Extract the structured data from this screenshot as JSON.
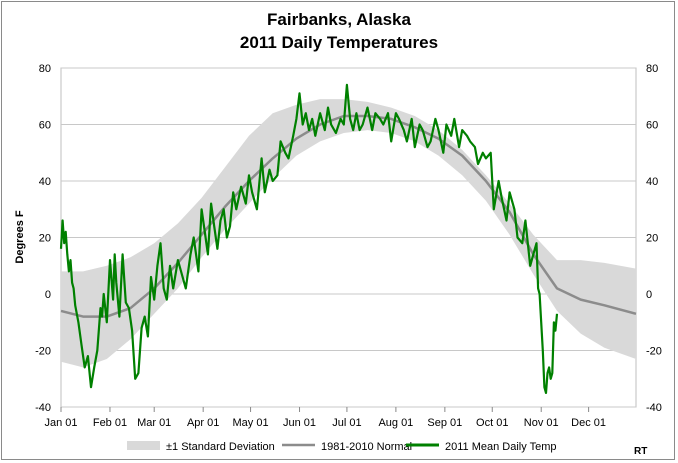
{
  "chart_data": {
    "type": "line",
    "title": "Fairbanks, Alaska",
    "subtitle": "2011 Daily Temperatures",
    "ylabel": "Degrees F",
    "ylim": [
      -40,
      80
    ],
    "yticks": [
      "80",
      "60",
      "40",
      "20",
      "0",
      "-20",
      "-40"
    ],
    "y_tick_values": [
      80,
      60,
      40,
      20,
      0,
      -20,
      -40
    ],
    "x_tick_labels": [
      "Jan 01",
      "Feb 01",
      "Mar 01",
      "Apr 01",
      "May 01",
      "Jun 01",
      "Jul 01",
      "Aug 01",
      "Sep 01",
      "Oct 01",
      "Nov 01",
      "Dec 01"
    ],
    "x_tick_days": [
      1,
      32,
      60,
      91,
      121,
      152,
      182,
      213,
      244,
      274,
      305,
      335
    ],
    "xlim": [
      1,
      365
    ],
    "grid": "horizontal",
    "legend_position": "bottom",
    "series": [
      {
        "name": "±1 Standard Deviation",
        "kind": "band",
        "color": "#d9d9d9",
        "x": [
          1,
          15,
          30,
          45,
          60,
          75,
          90,
          105,
          120,
          135,
          150,
          165,
          180,
          195,
          210,
          225,
          240,
          255,
          270,
          285,
          300,
          315,
          330,
          345,
          365
        ],
        "upper": [
          8,
          8,
          10,
          13,
          18,
          25,
          34,
          45,
          56,
          64,
          67,
          69,
          69,
          68,
          66,
          63,
          58,
          51,
          42,
          32,
          21,
          12,
          12,
          11,
          9
        ],
        "lower": [
          -24,
          -26,
          -23,
          -16,
          -7,
          2,
          13,
          23,
          32,
          41,
          49,
          54,
          57,
          58,
          57,
          54,
          49,
          42,
          33,
          21,
          7,
          -6,
          -14,
          -19,
          -23
        ]
      },
      {
        "name": "1981-2010 Normal",
        "kind": "line",
        "color": "#8c8c8c",
        "x": [
          1,
          15,
          30,
          45,
          60,
          75,
          90,
          105,
          120,
          135,
          150,
          165,
          180,
          195,
          210,
          225,
          240,
          255,
          270,
          285,
          300,
          315,
          330,
          345,
          365
        ],
        "values": [
          -6,
          -8,
          -8,
          -5,
          2,
          11,
          21,
          31,
          40,
          48,
          55,
          60,
          63,
          63,
          62,
          59,
          55,
          49,
          40,
          29,
          14,
          2,
          -2,
          -4,
          -7
        ]
      },
      {
        "name": "2011 Mean Daily Temp",
        "kind": "line",
        "color": "#008000",
        "x": [
          1,
          2,
          3,
          4,
          5,
          6,
          7,
          8,
          9,
          10,
          12,
          14,
          16,
          18,
          20,
          22,
          24,
          26,
          27,
          28,
          30,
          32,
          34,
          35,
          36,
          38,
          40,
          42,
          44,
          46,
          48,
          50,
          52,
          54,
          56,
          58,
          60,
          62,
          64,
          66,
          68,
          70,
          72,
          75,
          78,
          80,
          83,
          85,
          88,
          90,
          92,
          94,
          96,
          98,
          100,
          102,
          104,
          106,
          108,
          110,
          112,
          115,
          118,
          120,
          122,
          125,
          128,
          130,
          133,
          135,
          138,
          140,
          143,
          145,
          148,
          150,
          152,
          154,
          156,
          158,
          160,
          162,
          165,
          168,
          170,
          172,
          175,
          178,
          180,
          182,
          184,
          186,
          188,
          190,
          192,
          195,
          198,
          200,
          203,
          205,
          208,
          210,
          213,
          215,
          218,
          220,
          223,
          225,
          228,
          230,
          233,
          235,
          238,
          240,
          243,
          245,
          248,
          250,
          253,
          255,
          258,
          260,
          263,
          265,
          268,
          270,
          273,
          275,
          278,
          280,
          283,
          285,
          288,
          290,
          293,
          295,
          298,
          300,
          302,
          303,
          304,
          305,
          306,
          307,
          308,
          309,
          310,
          311,
          312,
          313,
          314,
          315
        ],
        "values": [
          16,
          26,
          18,
          22,
          14,
          8,
          12,
          4,
          2,
          -4,
          -10,
          -18,
          -26,
          -22,
          -33,
          -26,
          -20,
          -5,
          -8,
          0,
          -10,
          12,
          -2,
          14,
          4,
          -8,
          14,
          -3,
          -5,
          -13,
          -30,
          -28,
          -12,
          -8,
          -15,
          6,
          -2,
          10,
          18,
          2,
          -2,
          10,
          2,
          12,
          6,
          2,
          14,
          20,
          8,
          30,
          22,
          14,
          32,
          24,
          16,
          26,
          30,
          20,
          24,
          36,
          30,
          38,
          32,
          42,
          36,
          30,
          48,
          36,
          44,
          40,
          42,
          54,
          50,
          48,
          56,
          62,
          71,
          60,
          64,
          58,
          62,
          56,
          64,
          58,
          66,
          60,
          57,
          62,
          60,
          74,
          62,
          58,
          64,
          58,
          60,
          66,
          58,
          64,
          62,
          60,
          64,
          54,
          64,
          62,
          58,
          54,
          62,
          52,
          60,
          58,
          52,
          54,
          62,
          58,
          50,
          60,
          56,
          62,
          52,
          58,
          56,
          54,
          52,
          46,
          50,
          48,
          50,
          30,
          40,
          34,
          26,
          36,
          30,
          20,
          18,
          26,
          10,
          14,
          18,
          2,
          0,
          -10,
          -20,
          -33,
          -35,
          -28,
          -26,
          -30,
          -28,
          -10,
          -13,
          -7
        ]
      }
    ],
    "annotation": "RT"
  }
}
